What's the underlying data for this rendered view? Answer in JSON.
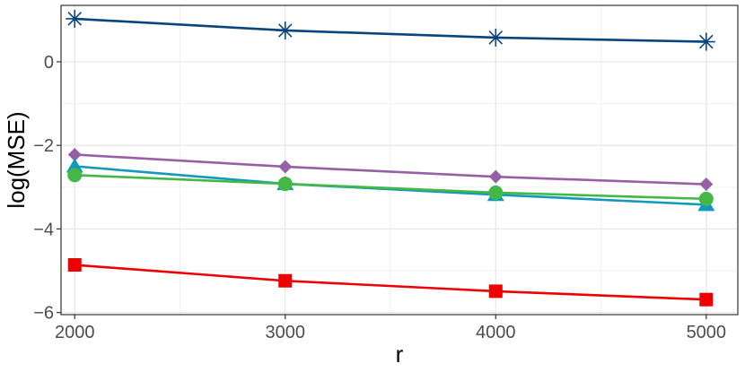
{
  "chart_data": {
    "type": "line",
    "title": "",
    "xlabel": "r",
    "ylabel": "log(MSE)",
    "x": [
      2000,
      3000,
      4000,
      5000
    ],
    "xlim": [
      1935,
      5150
    ],
    "ylim": [
      -6.05,
      1.35
    ],
    "xticks": [
      2000,
      3000,
      4000,
      5000
    ],
    "yticks": [
      0,
      -2,
      -4,
      -6
    ],
    "xtick_labels": [
      "2000",
      "3000",
      "4000",
      "5000"
    ],
    "ytick_labels": [
      "0",
      "−2",
      "−4",
      "−6"
    ],
    "grid": true,
    "legend": "none",
    "series": [
      {
        "marker": "asterisk",
        "color": "#08457e",
        "values": [
          1.03,
          0.75,
          0.58,
          0.48
        ]
      },
      {
        "marker": "diamond",
        "color": "#9661a4",
        "values": [
          -2.22,
          -2.51,
          -2.75,
          -2.93
        ]
      },
      {
        "marker": "triangle",
        "color": "#1199bb",
        "values": [
          -2.5,
          -2.92,
          -3.18,
          -3.42
        ]
      },
      {
        "marker": "circle",
        "color": "#44b847",
        "values": [
          -2.71,
          -2.92,
          -3.13,
          -3.28
        ]
      },
      {
        "marker": "square",
        "color": "#ee0000",
        "values": [
          -4.86,
          -5.24,
          -5.49,
          -5.69
        ]
      }
    ]
  }
}
